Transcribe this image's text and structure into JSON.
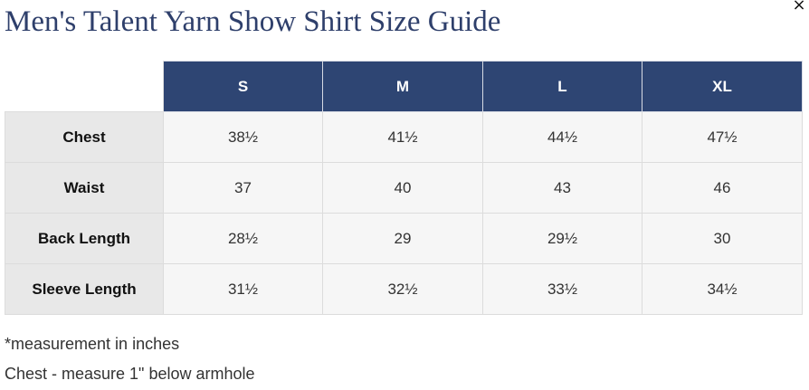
{
  "page": {
    "title": "Men's Talent Yarn Show Shirt Size Guide",
    "close_symbol": "×"
  },
  "table": {
    "corner": "",
    "sizes": [
      "S",
      "M",
      "L",
      "XL"
    ],
    "rows": [
      {
        "label": "Chest",
        "values": [
          "38½",
          "41½",
          "44½",
          "47½"
        ]
      },
      {
        "label": "Waist",
        "values": [
          "37",
          "40",
          "43",
          "46"
        ]
      },
      {
        "label": "Back Length",
        "values": [
          "28½",
          "29",
          "29½",
          "30"
        ]
      },
      {
        "label": "Sleeve Length",
        "values": [
          "31½",
          "32½",
          "33½",
          "34½"
        ]
      }
    ]
  },
  "notes": {
    "measurement_unit": "*measurement in inches",
    "chest_instruction": "Chest - measure 1\" below armhole"
  },
  "colors": {
    "title": "#2e3f6b",
    "header_bg": "#2e4573",
    "row_header_bg": "#e8e8e8",
    "cell_bg": "#f6f6f6"
  }
}
